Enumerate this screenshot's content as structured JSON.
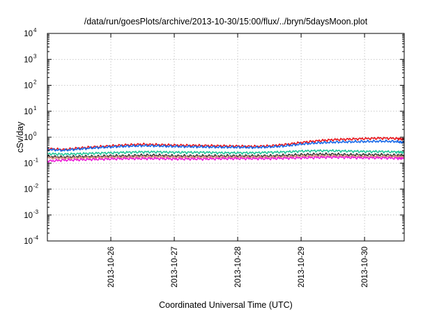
{
  "chart_data": {
    "type": "line",
    "title": "/data/run/goesPlots/archive/2013-10-30/15:00/flux/../bryn/5daysMoon.plot",
    "xlabel": "Coordinated Universal Time (UTC)",
    "ylabel": "cSv/day",
    "yscale": "log",
    "ylim": [
      0.0001,
      10000
    ],
    "xlim": [
      "2013-10-25 00:00",
      "2013-10-30 15:00"
    ],
    "y_ticks": [
      {
        "base": "10",
        "exp": "-4"
      },
      {
        "base": "10",
        "exp": "-3"
      },
      {
        "base": "10",
        "exp": "-2"
      },
      {
        "base": "10",
        "exp": "-1"
      },
      {
        "base": "10",
        "exp": "0"
      },
      {
        "base": "10",
        "exp": "1"
      },
      {
        "base": "10",
        "exp": "2"
      },
      {
        "base": "10",
        "exp": "3"
      },
      {
        "base": "10",
        "exp": "4"
      }
    ],
    "x_ticks": [
      "2013-10-26",
      "2013-10-27",
      "2013-10-28",
      "2013-10-29",
      "2013-10-30"
    ],
    "grid": true,
    "legend": "none",
    "series": [
      {
        "color": "#e8151b",
        "x": [
          "2013-10-25 00:00",
          "2013-10-25 06:00",
          "2013-10-25 12:00",
          "2013-10-25 18:00",
          "2013-10-26 00:00",
          "2013-10-26 06:00",
          "2013-10-26 12:00",
          "2013-10-26 18:00",
          "2013-10-27 00:00",
          "2013-10-27 06:00",
          "2013-10-27 12:00",
          "2013-10-27 18:00",
          "2013-10-28 00:00",
          "2013-10-28 06:00",
          "2013-10-28 12:00",
          "2013-10-28 18:00",
          "2013-10-29 00:00",
          "2013-10-29 06:00",
          "2013-10-29 12:00",
          "2013-10-29 18:00",
          "2013-10-30 00:00",
          "2013-10-30 06:00",
          "2013-10-30 12:00",
          "2013-10-30 15:00"
        ],
        "values": [
          0.36,
          0.33,
          0.38,
          0.42,
          0.46,
          0.5,
          0.53,
          0.51,
          0.49,
          0.48,
          0.47,
          0.46,
          0.45,
          0.44,
          0.46,
          0.52,
          0.62,
          0.72,
          0.8,
          0.84,
          0.88,
          0.92,
          0.9,
          0.82
        ]
      },
      {
        "color": "#1a6be8",
        "x": [
          "2013-10-25 00:00",
          "2013-10-25 06:00",
          "2013-10-25 12:00",
          "2013-10-25 18:00",
          "2013-10-26 00:00",
          "2013-10-26 06:00",
          "2013-10-26 12:00",
          "2013-10-26 18:00",
          "2013-10-27 00:00",
          "2013-10-27 06:00",
          "2013-10-27 12:00",
          "2013-10-27 18:00",
          "2013-10-28 00:00",
          "2013-10-28 06:00",
          "2013-10-28 12:00",
          "2013-10-28 18:00",
          "2013-10-29 00:00",
          "2013-10-29 06:00",
          "2013-10-29 12:00",
          "2013-10-29 18:00",
          "2013-10-30 00:00",
          "2013-10-30 06:00",
          "2013-10-30 12:00",
          "2013-10-30 15:00"
        ],
        "values": [
          0.34,
          0.31,
          0.35,
          0.39,
          0.42,
          0.45,
          0.47,
          0.46,
          0.44,
          0.43,
          0.42,
          0.41,
          0.41,
          0.4,
          0.42,
          0.46,
          0.54,
          0.6,
          0.64,
          0.66,
          0.68,
          0.7,
          0.68,
          0.62
        ]
      },
      {
        "color": "#22c79a",
        "x": [
          "2013-10-25 00:00",
          "2013-10-25 06:00",
          "2013-10-25 12:00",
          "2013-10-25 18:00",
          "2013-10-26 00:00",
          "2013-10-26 06:00",
          "2013-10-26 12:00",
          "2013-10-26 18:00",
          "2013-10-27 00:00",
          "2013-10-27 06:00",
          "2013-10-27 12:00",
          "2013-10-27 18:00",
          "2013-10-28 00:00",
          "2013-10-28 06:00",
          "2013-10-28 12:00",
          "2013-10-28 18:00",
          "2013-10-29 00:00",
          "2013-10-29 06:00",
          "2013-10-29 12:00",
          "2013-10-29 18:00",
          "2013-10-30 00:00",
          "2013-10-30 06:00",
          "2013-10-30 12:00",
          "2013-10-30 15:00"
        ],
        "values": [
          0.23,
          0.22,
          0.23,
          0.24,
          0.25,
          0.26,
          0.27,
          0.27,
          0.26,
          0.26,
          0.26,
          0.25,
          0.25,
          0.25,
          0.26,
          0.27,
          0.29,
          0.3,
          0.3,
          0.29,
          0.28,
          0.28,
          0.27,
          0.26
        ]
      },
      {
        "color": "#3a3a3a",
        "x": [
          "2013-10-25 00:00",
          "2013-10-25 06:00",
          "2013-10-25 12:00",
          "2013-10-25 18:00",
          "2013-10-26 00:00",
          "2013-10-26 06:00",
          "2013-10-26 12:00",
          "2013-10-26 18:00",
          "2013-10-27 00:00",
          "2013-10-27 06:00",
          "2013-10-27 12:00",
          "2013-10-27 18:00",
          "2013-10-28 00:00",
          "2013-10-28 06:00",
          "2013-10-28 12:00",
          "2013-10-28 18:00",
          "2013-10-29 00:00",
          "2013-10-29 06:00",
          "2013-10-29 12:00",
          "2013-10-29 18:00",
          "2013-10-30 00:00",
          "2013-10-30 06:00",
          "2013-10-30 12:00",
          "2013-10-30 15:00"
        ],
        "values": [
          0.18,
          0.17,
          0.18,
          0.18,
          0.19,
          0.19,
          0.2,
          0.2,
          0.19,
          0.19,
          0.19,
          0.19,
          0.19,
          0.19,
          0.19,
          0.2,
          0.21,
          0.22,
          0.22,
          0.21,
          0.21,
          0.21,
          0.2,
          0.2
        ]
      },
      {
        "color": "#d98a7a",
        "x": [
          "2013-10-25 00:00",
          "2013-10-25 06:00",
          "2013-10-25 12:00",
          "2013-10-25 18:00",
          "2013-10-26 00:00",
          "2013-10-26 06:00",
          "2013-10-26 12:00",
          "2013-10-26 18:00",
          "2013-10-27 00:00",
          "2013-10-27 06:00",
          "2013-10-27 12:00",
          "2013-10-27 18:00",
          "2013-10-28 00:00",
          "2013-10-28 06:00",
          "2013-10-28 12:00",
          "2013-10-28 18:00",
          "2013-10-29 00:00",
          "2013-10-29 06:00",
          "2013-10-29 12:00",
          "2013-10-29 18:00",
          "2013-10-30 00:00",
          "2013-10-30 06:00",
          "2013-10-30 12:00",
          "2013-10-30 15:00"
        ],
        "values": [
          0.16,
          0.155,
          0.16,
          0.165,
          0.17,
          0.17,
          0.175,
          0.175,
          0.17,
          0.17,
          0.17,
          0.17,
          0.17,
          0.17,
          0.17,
          0.175,
          0.185,
          0.19,
          0.19,
          0.185,
          0.18,
          0.18,
          0.18,
          0.175
        ]
      },
      {
        "color": "#ee1bd9",
        "x": [
          "2013-10-25 00:00",
          "2013-10-25 06:00",
          "2013-10-25 12:00",
          "2013-10-25 18:00",
          "2013-10-26 00:00",
          "2013-10-26 06:00",
          "2013-10-26 12:00",
          "2013-10-26 18:00",
          "2013-10-27 00:00",
          "2013-10-27 06:00",
          "2013-10-27 12:00",
          "2013-10-27 18:00",
          "2013-10-28 00:00",
          "2013-10-28 06:00",
          "2013-10-28 12:00",
          "2013-10-28 18:00",
          "2013-10-29 00:00",
          "2013-10-29 06:00",
          "2013-10-29 12:00",
          "2013-10-29 18:00",
          "2013-10-30 00:00",
          "2013-10-30 06:00",
          "2013-10-30 12:00",
          "2013-10-30 15:00"
        ],
        "values": [
          0.12,
          0.13,
          0.135,
          0.14,
          0.145,
          0.15,
          0.15,
          0.15,
          0.145,
          0.145,
          0.145,
          0.15,
          0.15,
          0.15,
          0.15,
          0.155,
          0.16,
          0.165,
          0.17,
          0.165,
          0.16,
          0.16,
          0.155,
          0.15
        ]
      }
    ]
  }
}
